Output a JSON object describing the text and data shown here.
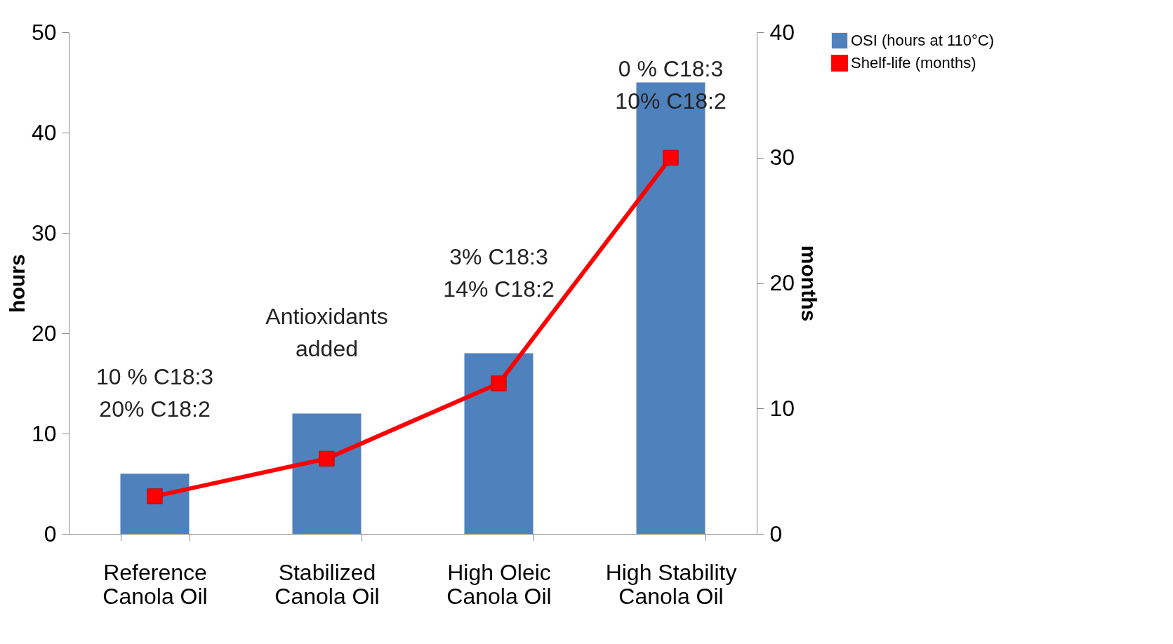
{
  "chart_data": {
    "type": "bar",
    "categories": [
      "Reference Canola Oil",
      "Stabilized Canola Oil",
      "High Oleic Canola Oil",
      "High Stability Canola Oil"
    ],
    "series": [
      {
        "name": "OSI (hours at 110°C)",
        "color": "#4f81bd",
        "values": [
          6,
          12,
          18,
          45
        ]
      },
      {
        "name": "Shelf-life (months)",
        "type": "line",
        "axis": "y2",
        "color": "#ff0000",
        "marker": "square",
        "values": [
          3,
          6,
          12,
          30
        ]
      }
    ],
    "ylabel": "hours",
    "y2label": "months",
    "ylim": [
      0,
      50
    ],
    "yticks": [
      0,
      10,
      20,
      30,
      40,
      50
    ],
    "y2lim": [
      0,
      40
    ],
    "y2ticks": [
      0,
      10,
      20,
      30,
      40
    ],
    "annotations": [
      "10 % C18:3\n20% C18:2",
      "Antioxidants\nadded",
      "3% C18:3\n14% C18:2",
      "0 % C18:3\n10% C18:2"
    ],
    "grid": false,
    "legend": "right"
  }
}
